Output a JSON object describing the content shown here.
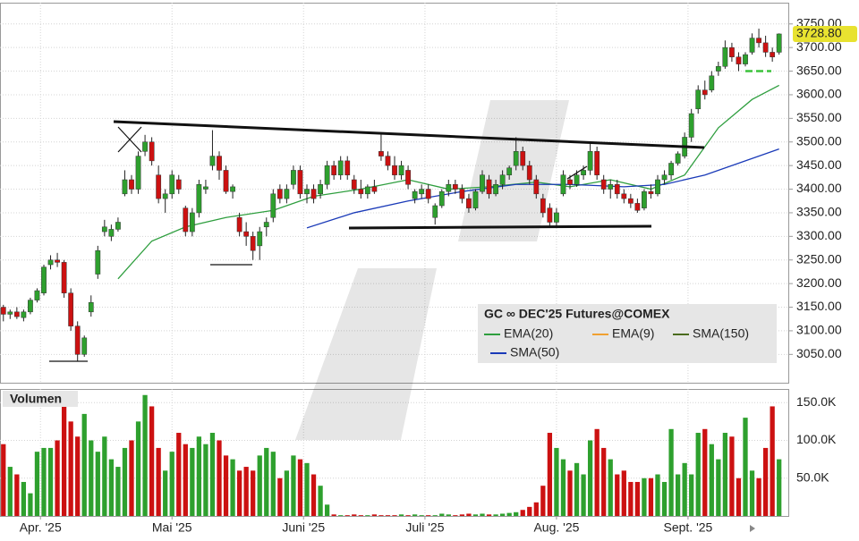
{
  "chart_data": {
    "type": "candlestick",
    "instrument": "GC ∞ DEC'25 Futures@COMEX",
    "volume_title": "Volumen",
    "last_label": "3728.80",
    "up_color": "#2ea02e",
    "down_color": "#cc1111",
    "level": 3650,
    "level_color": "#3cc23c",
    "candles": [
      [
        3150,
        3155,
        3120,
        3135
      ],
      [
        3135,
        3145,
        3125,
        3140
      ],
      [
        3140,
        3150,
        3125,
        3130
      ],
      [
        3128,
        3145,
        3120,
        3140
      ],
      [
        3140,
        3170,
        3135,
        3165
      ],
      [
        3165,
        3190,
        3160,
        3185
      ],
      [
        3180,
        3240,
        3175,
        3235
      ],
      [
        3240,
        3260,
        3230,
        3250
      ],
      [
        3250,
        3265,
        3235,
        3245
      ],
      [
        3245,
        3250,
        3170,
        3180
      ],
      [
        3180,
        3190,
        3100,
        3110
      ],
      [
        3110,
        3120,
        3035,
        3050
      ],
      [
        3050,
        3090,
        3045,
        3085
      ],
      [
        3140,
        3175,
        3130,
        3160
      ],
      [
        3220,
        3280,
        3210,
        3270
      ],
      [
        3310,
        3335,
        3300,
        3320
      ],
      [
        3300,
        3325,
        3290,
        3315
      ],
      [
        3315,
        3340,
        3310,
        3330
      ],
      [
        3390,
        3440,
        3385,
        3420
      ],
      [
        3420,
        3430,
        3390,
        3400
      ],
      [
        3400,
        3480,
        3390,
        3470
      ],
      [
        3480,
        3515,
        3470,
        3500
      ],
      [
        3500,
        3510,
        3450,
        3460
      ],
      [
        3430,
        3450,
        3370,
        3380
      ],
      [
        3380,
        3400,
        3350,
        3390
      ],
      [
        3390,
        3440,
        3380,
        3430
      ],
      [
        3420,
        3430,
        3390,
        3400
      ],
      [
        3360,
        3365,
        3300,
        3310
      ],
      [
        3310,
        3360,
        3300,
        3350
      ],
      [
        3350,
        3420,
        3340,
        3410
      ],
      [
        3400,
        3420,
        3390,
        3405
      ],
      [
        3450,
        3525,
        3440,
        3470
      ],
      [
        3470,
        3480,
        3420,
        3440
      ],
      [
        3440,
        3450,
        3390,
        3395
      ],
      [
        3395,
        3410,
        3380,
        3405
      ],
      [
        3340,
        3350,
        3300,
        3310
      ],
      [
        3310,
        3330,
        3280,
        3300
      ],
      [
        3300,
        3310,
        3250,
        3270
      ],
      [
        3280,
        3320,
        3250,
        3310
      ],
      [
        3320,
        3340,
        3300,
        3330
      ],
      [
        3340,
        3400,
        3330,
        3390
      ],
      [
        3400,
        3410,
        3370,
        3380
      ],
      [
        3380,
        3410,
        3370,
        3400
      ],
      [
        3410,
        3450,
        3400,
        3440
      ],
      [
        3440,
        3450,
        3380,
        3390
      ],
      [
        3390,
        3410,
        3370,
        3400
      ],
      [
        3400,
        3410,
        3370,
        3380
      ],
      [
        3390,
        3420,
        3380,
        3410
      ],
      [
        3410,
        3460,
        3400,
        3450
      ],
      [
        3450,
        3460,
        3420,
        3430
      ],
      [
        3430,
        3470,
        3420,
        3460
      ],
      [
        3460,
        3470,
        3420,
        3430
      ],
      [
        3420,
        3430,
        3390,
        3400
      ],
      [
        3400,
        3420,
        3380,
        3390
      ],
      [
        3390,
        3410,
        3380,
        3405
      ],
      [
        3405,
        3420,
        3390,
        3395
      ],
      [
        3480,
        3520,
        3460,
        3470
      ],
      [
        3470,
        3480,
        3440,
        3450
      ],
      [
        3450,
        3470,
        3420,
        3430
      ],
      [
        3430,
        3460,
        3420,
        3450
      ],
      [
        3440,
        3450,
        3400,
        3410
      ],
      [
        3380,
        3400,
        3370,
        3395
      ],
      [
        3390,
        3410,
        3380,
        3400
      ],
      [
        3400,
        3410,
        3370,
        3380
      ],
      [
        3340,
        3370,
        3325,
        3365
      ],
      [
        3365,
        3400,
        3360,
        3395
      ],
      [
        3395,
        3420,
        3385,
        3410
      ],
      [
        3410,
        3420,
        3390,
        3400
      ],
      [
        3400,
        3410,
        3370,
        3380
      ],
      [
        3380,
        3390,
        3350,
        3360
      ],
      [
        3360,
        3400,
        3355,
        3395
      ],
      [
        3395,
        3440,
        3390,
        3430
      ],
      [
        3420,
        3430,
        3380,
        3390
      ],
      [
        3390,
        3420,
        3385,
        3410
      ],
      [
        3410,
        3440,
        3400,
        3430
      ],
      [
        3430,
        3450,
        3420,
        3445
      ],
      [
        3450,
        3510,
        3440,
        3480
      ],
      [
        3480,
        3490,
        3440,
        3450
      ],
      [
        3450,
        3460,
        3410,
        3420
      ],
      [
        3420,
        3430,
        3380,
        3390
      ],
      [
        3380,
        3390,
        3340,
        3350
      ],
      [
        3360,
        3370,
        3320,
        3330
      ],
      [
        3330,
        3360,
        3320,
        3350
      ],
      [
        3390,
        3440,
        3385,
        3430
      ],
      [
        3420,
        3430,
        3400,
        3410
      ],
      [
        3410,
        3440,
        3405,
        3430
      ],
      [
        3430,
        3450,
        3420,
        3440
      ],
      [
        3440,
        3500,
        3430,
        3480
      ],
      [
        3480,
        3490,
        3420,
        3430
      ],
      [
        3420,
        3430,
        3390,
        3400
      ],
      [
        3400,
        3420,
        3380,
        3410
      ],
      [
        3410,
        3420,
        3380,
        3390
      ],
      [
        3390,
        3400,
        3370,
        3380
      ],
      [
        3380,
        3390,
        3360,
        3370
      ],
      [
        3370,
        3380,
        3350,
        3355
      ],
      [
        3360,
        3400,
        3355,
        3395
      ],
      [
        3395,
        3410,
        3380,
        3390
      ],
      [
        3390,
        3430,
        3385,
        3420
      ],
      [
        3420,
        3440,
        3410,
        3430
      ],
      [
        3430,
        3460,
        3420,
        3455
      ],
      [
        3455,
        3480,
        3450,
        3475
      ],
      [
        3470,
        3520,
        3465,
        3510
      ],
      [
        3510,
        3570,
        3500,
        3560
      ],
      [
        3570,
        3620,
        3560,
        3610
      ],
      [
        3610,
        3630,
        3590,
        3600
      ],
      [
        3610,
        3650,
        3605,
        3640
      ],
      [
        3650,
        3670,
        3640,
        3660
      ],
      [
        3660,
        3715,
        3655,
        3700
      ],
      [
        3700,
        3710,
        3670,
        3680
      ],
      [
        3680,
        3690,
        3650,
        3665
      ],
      [
        3665,
        3690,
        3660,
        3685
      ],
      [
        3690,
        3730,
        3685,
        3720
      ],
      [
        3720,
        3740,
        3700,
        3710
      ],
      [
        3710,
        3725,
        3680,
        3690
      ],
      [
        3690,
        3700,
        3670,
        3680
      ],
      [
        3690,
        3730,
        3685,
        3728.8
      ]
    ],
    "volumes": [
      95,
      65,
      55,
      45,
      30,
      85,
      90,
      90,
      100,
      155,
      125,
      105,
      135,
      100,
      85,
      105,
      75,
      65,
      90,
      100,
      125,
      160,
      145,
      90,
      60,
      85,
      110,
      95,
      90,
      105,
      95,
      110,
      100,
      80,
      75,
      60,
      65,
      60,
      80,
      90,
      85,
      50,
      60,
      80,
      75,
      70,
      55,
      40,
      15,
      2,
      1,
      1,
      2,
      1,
      1,
      2,
      1,
      1,
      1,
      2,
      1,
      2,
      1,
      1,
      1,
      3,
      2,
      1,
      2,
      3,
      2,
      3,
      2,
      2,
      3,
      4,
      5,
      8,
      12,
      18,
      40,
      110,
      90,
      75,
      60,
      70,
      55,
      100,
      115,
      90,
      75,
      55,
      60,
      45,
      45,
      50,
      50,
      55,
      45,
      115,
      55,
      70,
      55,
      110,
      115,
      95,
      75,
      110,
      105,
      50,
      130,
      60,
      50,
      90,
      145,
      75
    ],
    "lines": [
      {
        "name": "EMA(20)",
        "color": "#2e9e3e",
        "x": [
          17,
          22,
          27,
          33,
          40,
          46,
          53,
          60,
          66,
          72,
          79,
          84,
          90,
          96,
          101,
          106,
          111,
          115
        ],
        "values": [
          3210,
          3290,
          3320,
          3340,
          3355,
          3385,
          3400,
          3420,
          3400,
          3405,
          3415,
          3405,
          3420,
          3400,
          3430,
          3530,
          3590,
          3620
        ]
      },
      {
        "name": "EMA(9)",
        "color": "#f0a030",
        "x": [],
        "values": []
      },
      {
        "name": "SMA(150)",
        "color": "#4a6b1e",
        "x": [],
        "values": []
      },
      {
        "name": "SMA(50)",
        "color": "#1a3ab8",
        "x": [
          45,
          52,
          60,
          68,
          76,
          84,
          92,
          98,
          104,
          110,
          115
        ],
        "values": [
          3318,
          3350,
          3375,
          3395,
          3410,
          3410,
          3405,
          3410,
          3430,
          3460,
          3485
        ]
      }
    ],
    "xlim": [
      -0.5,
      116.5
    ],
    "xticks": [
      {
        "value": 5.5,
        "label": "Apr. '25"
      },
      {
        "value": 25,
        "label": "Mai '25"
      },
      {
        "value": 44.5,
        "label": "Juni '25"
      },
      {
        "value": 62.5,
        "label": "Juli '25"
      },
      {
        "value": 82,
        "label": "Aug. '25"
      },
      {
        "value": 101.5,
        "label": "Sept. '25"
      }
    ],
    "ylim": [
      2990,
      3795
    ],
    "yticks": [
      {
        "value": 3050,
        "label": "3050.00"
      },
      {
        "value": 3100,
        "label": "3100.00"
      },
      {
        "value": 3150,
        "label": "3150.00"
      },
      {
        "value": 3200,
        "label": "3200.00"
      },
      {
        "value": 3250,
        "label": "3250.00"
      },
      {
        "value": 3300,
        "label": "3300.00"
      },
      {
        "value": 3350,
        "label": "3350.00"
      },
      {
        "value": 3400,
        "label": "3400.00"
      },
      {
        "value": 3450,
        "label": "3450.00"
      },
      {
        "value": 3500,
        "label": "3500.00"
      },
      {
        "value": 3550,
        "label": "3550.00"
      },
      {
        "value": 3600,
        "label": "3600.00"
      },
      {
        "value": 3650,
        "label": "3650.00"
      },
      {
        "value": 3700,
        "label": "3700.00"
      },
      {
        "value": 3750,
        "label": "3750.00"
      }
    ],
    "vlim": [
      0,
      168
    ],
    "vticks": [
      {
        "value": 50,
        "label": "50.0K"
      },
      {
        "value": 100,
        "label": "100.0K"
      },
      {
        "value": 150,
        "label": "150.0K"
      }
    ],
    "grid": true
  }
}
